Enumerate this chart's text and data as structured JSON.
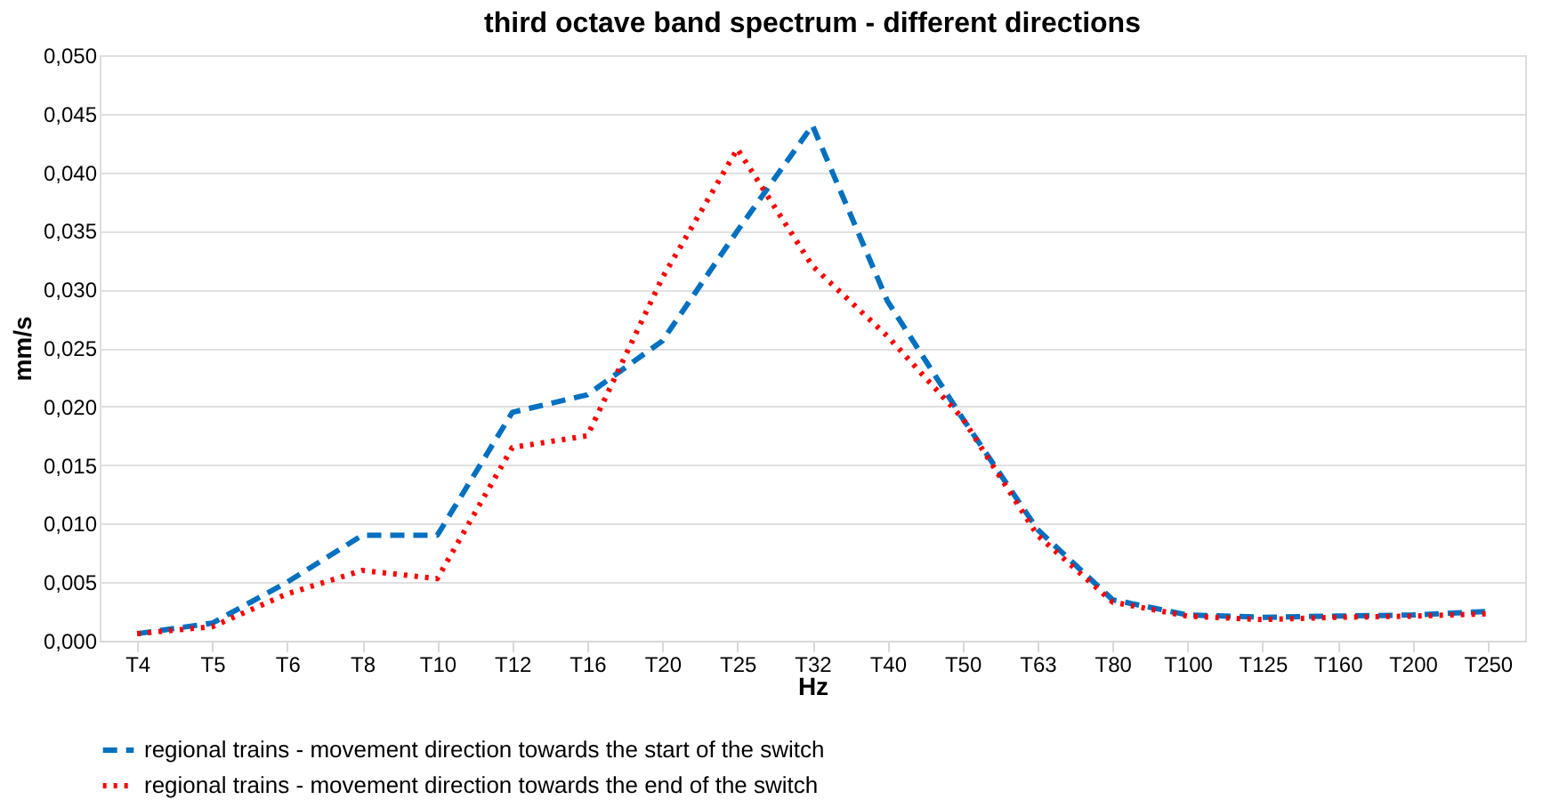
{
  "chart_data": {
    "type": "line",
    "title": "third octave band spectrum - different directions",
    "xlabel": "Hz",
    "ylabel": "mm/s",
    "categories": [
      "T4",
      "T5",
      "T6",
      "T8",
      "T10",
      "T12",
      "T16",
      "T20",
      "T25",
      "T32",
      "T40",
      "T50",
      "T63",
      "T80",
      "T100",
      "T125",
      "T160",
      "T200",
      "T250"
    ],
    "series": [
      {
        "name": "regional trains - movement direction towards the start of the switch",
        "color": "#0070c0",
        "line_style": "dashed",
        "values": [
          0.0006,
          0.0015,
          0.005,
          0.009,
          0.009,
          0.0195,
          0.021,
          0.0256,
          0.035,
          0.044,
          0.029,
          0.019,
          0.0095,
          0.0035,
          0.0022,
          0.002,
          0.0021,
          0.0022,
          0.0025
        ]
      },
      {
        "name": "regional trains - movement direction towards the end of the switch",
        "color": "#ff0000",
        "line_style": "dotted",
        "values": [
          0.0006,
          0.0012,
          0.004,
          0.006,
          0.0053,
          0.0165,
          0.0175,
          0.031,
          0.042,
          0.032,
          0.026,
          0.019,
          0.009,
          0.0033,
          0.0021,
          0.0018,
          0.002,
          0.0021,
          0.0023
        ]
      }
    ],
    "ylim": [
      0,
      0.05
    ],
    "yticks": [
      {
        "value": 0,
        "label": "0,000"
      },
      {
        "value": 0.005,
        "label": "0,005"
      },
      {
        "value": 0.01,
        "label": "0,010"
      },
      {
        "value": 0.015,
        "label": "0,015"
      },
      {
        "value": 0.02,
        "label": "0,020"
      },
      {
        "value": 0.025,
        "label": "0,025"
      },
      {
        "value": 0.03,
        "label": "0,030"
      },
      {
        "value": 0.035,
        "label": "0,035"
      },
      {
        "value": 0.04,
        "label": "0,040"
      },
      {
        "value": 0.045,
        "label": "0,045"
      },
      {
        "value": 0.05,
        "label": "0,050"
      }
    ],
    "grid": "y",
    "legend": "bottom",
    "marker": "none"
  }
}
